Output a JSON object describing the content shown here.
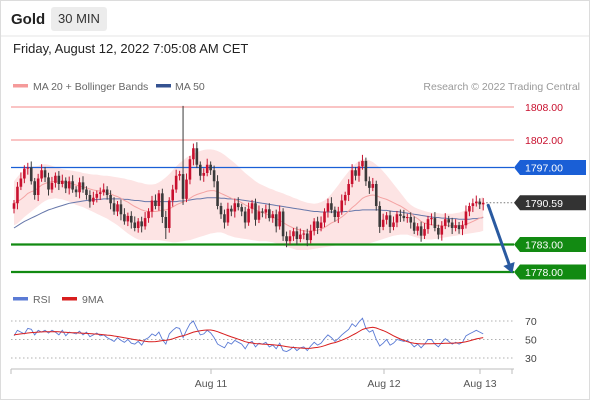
{
  "header": {
    "symbol": "Gold",
    "timeframe": "30 MIN",
    "datetime": "Friday, August 12, 2022 7:05:08 AM CET"
  },
  "legend": {
    "ma20_bb": "MA 20 + Bollinger Bands",
    "ma50": "MA 50",
    "rsi": "RSI",
    "rsi_ma": "9MA"
  },
  "credit": "Research © 2022 Trading Central",
  "colors": {
    "bull_candle": "#c8102e",
    "bear_candle": "#3a3a3a",
    "bollinger_fill": "#fde4e4",
    "ma20": "#f4a3a3",
    "ma50": "#6677aa",
    "resistance": "#f6a0a0",
    "pivot": "#1a5fd6",
    "support": "#128a12",
    "current_price": "#333333",
    "arrow": "#2a5aa0",
    "rsi_line": "#5b7bd5",
    "rsi_ma_line": "#d81e1e"
  },
  "chart_data": [
    {
      "type": "candlestick",
      "ylim": [
        1773,
        1810
      ],
      "x_ticks": [
        "Aug 11",
        "Aug 12",
        "Aug 13"
      ],
      "levels": [
        {
          "kind": "resistance",
          "value": 1808.0,
          "label": "1808.00"
        },
        {
          "kind": "resistance",
          "value": 1802.0,
          "label": "1802.00"
        },
        {
          "kind": "pivot",
          "value": 1797.0,
          "label": "1797.00"
        },
        {
          "kind": "current",
          "value": 1790.59,
          "label": "1790.59"
        },
        {
          "kind": "support",
          "value": 1783.0,
          "label": "1783.00"
        },
        {
          "kind": "support",
          "value": 1778.0,
          "label": "1778.00"
        }
      ],
      "forecast_arrow": {
        "from": 1790.5,
        "to": 1778.0
      },
      "close": [
        1790.5,
        1793.5,
        1795.0,
        1796.8,
        1797.0,
        1794.5,
        1792.0,
        1795.0,
        1796.5,
        1795.2,
        1793.0,
        1794.2,
        1795.5,
        1794.0,
        1794.6,
        1793.2,
        1794.5,
        1793.0,
        1792.5,
        1794.3,
        1793.0,
        1792.0,
        1790.8,
        1791.5,
        1792.2,
        1792.5,
        1793.0,
        1792.0,
        1790.5,
        1789.0,
        1790.3,
        1788.5,
        1787.2,
        1788.2,
        1787.0,
        1786.0,
        1787.2,
        1786.3,
        1787.8,
        1789.0,
        1791.0,
        1790.0,
        1792.3,
        1788.0,
        1786.0,
        1791.0,
        1793.0,
        1795.5,
        1795.8,
        1791.3,
        1794.8,
        1798.5,
        1800.5,
        1797.5,
        1795.5,
        1796.0,
        1797.5,
        1796.5,
        1794.5,
        1790.0,
        1788.5,
        1787.0,
        1789.5,
        1789.0,
        1790.5,
        1789.8,
        1789.0,
        1787.0,
        1789.5,
        1790.5,
        1787.5,
        1789.0,
        1788.8,
        1789.4,
        1787.8,
        1788.5,
        1786.3,
        1789.0,
        1784.5,
        1783.6,
        1784.5,
        1785.4,
        1784.0,
        1784.8,
        1785.0,
        1783.8,
        1785.5,
        1787.2,
        1786.0,
        1787.0,
        1789.0,
        1790.5,
        1789.3,
        1788.0,
        1789.0,
        1791.0,
        1792.0,
        1794.0,
        1796.5,
        1795.5,
        1797.2,
        1798.2,
        1794.5,
        1793.3,
        1794.0,
        1790.0,
        1786.2,
        1787.5,
        1788.3,
        1786.2,
        1787.0,
        1788.5,
        1788.2,
        1787.8,
        1788.0,
        1787.0,
        1785.5,
        1786.3,
        1784.6,
        1785.8,
        1787.6,
        1787.8,
        1786.0,
        1784.8,
        1786.4,
        1787.6,
        1787.0,
        1786.0,
        1786.5,
        1785.8,
        1786.5,
        1789.0,
        1790.0,
        1790.5,
        1790.8,
        1790.3,
        1790.59
      ],
      "ma20": [
        1790.5,
        1790.8,
        1791.2,
        1791.7,
        1792.3,
        1792.6,
        1792.8,
        1793.3,
        1793.8,
        1794.1,
        1794.3,
        1794.4,
        1794.5,
        1794.5,
        1794.4,
        1794.3,
        1794.2,
        1794.0,
        1793.8,
        1793.6,
        1793.5,
        1793.3,
        1793.1,
        1792.9,
        1792.8,
        1792.7,
        1792.6,
        1792.4,
        1792.2,
        1791.9,
        1791.7,
        1791.4,
        1791.0,
        1790.7,
        1790.3,
        1789.9,
        1789.6,
        1789.3,
        1789.1,
        1789.0,
        1789.0,
        1789.0,
        1789.1,
        1789.2,
        1789.3,
        1789.5,
        1789.8,
        1790.2,
        1790.5,
        1790.7,
        1791.0,
        1791.4,
        1791.8,
        1792.1,
        1792.3,
        1792.5,
        1792.7,
        1792.8,
        1792.8,
        1792.6,
        1792.3,
        1792.0,
        1791.7,
        1791.4,
        1791.2,
        1790.9,
        1790.6,
        1790.2,
        1789.9,
        1789.6,
        1789.3,
        1789.0,
        1788.8,
        1788.6,
        1788.3,
        1788.0,
        1787.7,
        1787.4,
        1787.0,
        1786.6,
        1786.3,
        1786.0,
        1785.8,
        1785.6,
        1785.5,
        1785.4,
        1785.4,
        1785.5,
        1785.6,
        1785.8,
        1786.1,
        1786.5,
        1786.9,
        1787.2,
        1787.6,
        1788.0,
        1788.5,
        1789.1,
        1789.7,
        1790.2,
        1790.8,
        1791.4,
        1791.7,
        1791.9,
        1792.0,
        1791.9,
        1791.6,
        1791.4,
        1791.2,
        1790.9,
        1790.6,
        1790.3,
        1790.0,
        1789.6,
        1789.2,
        1788.7,
        1788.1,
        1787.7,
        1787.2,
        1786.9,
        1786.7,
        1786.6,
        1786.5,
        1786.4,
        1786.4,
        1786.4,
        1786.4,
        1786.4,
        1786.4,
        1786.4,
        1786.5,
        1786.7,
        1786.9,
        1787.2,
        1787.5,
        1787.8,
        1788.0
      ],
      "ma50": [
        1786.0,
        1786.4,
        1786.8,
        1787.2,
        1787.5,
        1787.8,
        1788.1,
        1788.4,
        1788.7,
        1789.0,
        1789.3,
        1789.5,
        1789.7,
        1789.9,
        1790.1,
        1790.3,
        1790.5,
        1790.6,
        1790.7,
        1790.8,
        1790.9,
        1791.0,
        1791.1,
        1791.1,
        1791.2,
        1791.2,
        1791.3,
        1791.3,
        1791.3,
        1791.3,
        1791.3,
        1791.3,
        1791.2,
        1791.2,
        1791.1,
        1791.0,
        1791.0,
        1790.9,
        1790.8,
        1790.8,
        1790.8,
        1790.8,
        1790.8,
        1790.8,
        1790.8,
        1790.8,
        1790.8,
        1790.8,
        1790.9,
        1790.9,
        1791.0,
        1791.1,
        1791.2,
        1791.3,
        1791.3,
        1791.4,
        1791.5,
        1791.5,
        1791.5,
        1791.5,
        1791.4,
        1791.4,
        1791.3,
        1791.3,
        1791.2,
        1791.2,
        1791.1,
        1791.0,
        1790.9,
        1790.8,
        1790.7,
        1790.6,
        1790.5,
        1790.4,
        1790.3,
        1790.2,
        1790.1,
        1790.0,
        1789.9,
        1789.8,
        1789.7,
        1789.6,
        1789.5,
        1789.4,
        1789.3,
        1789.2,
        1789.1,
        1789.0,
        1789.0,
        1788.9,
        1788.9,
        1788.9,
        1788.9,
        1788.9,
        1788.9,
        1788.9,
        1789.0,
        1789.0,
        1789.1,
        1789.2,
        1789.2,
        1789.3,
        1789.3,
        1789.3,
        1789.3,
        1789.3,
        1789.3,
        1789.2,
        1789.2,
        1789.1,
        1789.0,
        1789.0,
        1788.9,
        1788.8,
        1788.7,
        1788.6,
        1788.5,
        1788.4,
        1788.3,
        1788.2,
        1788.1,
        1788.0,
        1787.9,
        1787.9,
        1787.8,
        1787.8,
        1787.7,
        1787.7,
        1787.7,
        1787.6,
        1787.6,
        1787.6,
        1787.6,
        1787.7,
        1787.7,
        1787.8,
        1787.9
      ],
      "bb_upper": [
        1794.5,
        1795.3,
        1796.0,
        1796.5,
        1797.0,
        1797.2,
        1797.2,
        1797.3,
        1797.5,
        1797.6,
        1797.5,
        1797.3,
        1797.1,
        1796.9,
        1796.7,
        1796.6,
        1796.5,
        1796.4,
        1796.3,
        1796.2,
        1796.0,
        1795.9,
        1795.8,
        1795.7,
        1795.7,
        1795.6,
        1795.5,
        1795.5,
        1795.4,
        1795.3,
        1795.2,
        1795.1,
        1795.0,
        1794.8,
        1794.7,
        1794.5,
        1794.3,
        1794.2,
        1794.0,
        1793.9,
        1793.9,
        1794.0,
        1794.3,
        1794.7,
        1795.2,
        1795.8,
        1796.5,
        1797.2,
        1797.8,
        1798.3,
        1798.8,
        1799.2,
        1799.5,
        1799.8,
        1800.0,
        1800.2,
        1800.3,
        1800.3,
        1800.2,
        1800.0,
        1799.7,
        1799.3,
        1798.8,
        1798.3,
        1797.8,
        1797.2,
        1796.6,
        1796.0,
        1795.5,
        1795.0,
        1794.5,
        1794.1,
        1793.8,
        1793.5,
        1793.2,
        1793.0,
        1792.7,
        1792.5,
        1792.3,
        1792.0,
        1791.8,
        1791.5,
        1791.3,
        1791.0,
        1790.8,
        1790.6,
        1790.5,
        1790.4,
        1790.5,
        1790.7,
        1791.0,
        1791.5,
        1792.2,
        1793.0,
        1793.8,
        1794.7,
        1795.5,
        1796.3,
        1797.1,
        1797.7,
        1798.2,
        1798.5,
        1798.5,
        1798.3,
        1798.0,
        1797.5,
        1797.0,
        1796.3,
        1795.6,
        1794.8,
        1794.0,
        1793.2,
        1792.4,
        1791.6,
        1790.8,
        1790.2,
        1789.8,
        1789.5,
        1789.3,
        1789.1,
        1788.9,
        1788.8,
        1788.7,
        1788.7,
        1788.6,
        1788.6,
        1788.6,
        1788.6,
        1788.7,
        1788.8,
        1789.0,
        1789.3,
        1789.7,
        1790.2,
        1790.8,
        1791.3,
        1791.7
      ],
      "bb_lower": [
        1786.5,
        1786.8,
        1787.4,
        1788.0,
        1788.5,
        1789.0,
        1789.5,
        1790.0,
        1790.5,
        1790.9,
        1791.2,
        1791.3,
        1791.4,
        1791.3,
        1791.2,
        1791.0,
        1790.8,
        1790.5,
        1790.2,
        1790.0,
        1789.8,
        1789.5,
        1789.2,
        1788.9,
        1788.6,
        1788.3,
        1788.0,
        1787.7,
        1787.3,
        1786.9,
        1786.5,
        1786.0,
        1785.5,
        1785.0,
        1784.6,
        1784.2,
        1783.9,
        1783.8,
        1783.8,
        1783.8,
        1783.8,
        1783.8,
        1783.8,
        1783.7,
        1783.6,
        1783.5,
        1783.4,
        1783.4,
        1783.5,
        1783.6,
        1783.7,
        1783.8,
        1784.0,
        1784.2,
        1784.4,
        1784.6,
        1784.8,
        1785.0,
        1785.1,
        1785.2,
        1785.2,
        1785.0,
        1784.7,
        1784.5,
        1784.3,
        1784.2,
        1784.1,
        1784.0,
        1783.9,
        1783.8,
        1783.7,
        1783.6,
        1783.6,
        1783.6,
        1783.5,
        1783.4,
        1783.2,
        1783.0,
        1782.8,
        1782.6,
        1782.4,
        1782.2,
        1782.0,
        1782.0,
        1782.0,
        1782.0,
        1782.1,
        1782.2,
        1782.3,
        1782.4,
        1782.5,
        1782.6,
        1782.7,
        1782.8,
        1782.9,
        1783.0,
        1783.0,
        1783.0,
        1783.0,
        1783.0,
        1783.0,
        1783.0,
        1783.1,
        1783.2,
        1783.4,
        1783.6,
        1783.8,
        1784.0,
        1784.2,
        1784.4,
        1784.6,
        1784.7,
        1784.8,
        1784.8,
        1784.8,
        1784.6,
        1784.4,
        1784.2,
        1784.0,
        1783.9,
        1783.9,
        1783.9,
        1784.0,
        1784.1,
        1784.2,
        1784.3,
        1784.4,
        1784.5,
        1784.6,
        1784.7,
        1784.8,
        1784.9,
        1785.0,
        1785.1,
        1785.2,
        1785.3,
        1785.5
      ]
    },
    {
      "type": "line",
      "series_names": [
        "RSI",
        "9MA"
      ],
      "y_ticks": [
        70,
        50,
        30
      ],
      "ylim": [
        25,
        78
      ],
      "rsi": [
        54,
        60,
        58,
        56,
        62,
        61,
        55,
        60,
        58,
        60,
        57,
        60,
        58,
        55,
        60,
        54,
        58,
        57,
        56,
        59,
        55,
        58,
        53,
        55,
        57,
        54,
        55,
        52,
        50,
        48,
        52,
        49,
        47,
        50,
        46,
        45,
        48,
        44,
        50,
        52,
        56,
        54,
        58,
        50,
        45,
        56,
        60,
        63,
        62,
        52,
        60,
        67,
        70,
        62,
        55,
        56,
        60,
        57,
        52,
        45,
        43,
        41,
        47,
        45,
        49,
        47,
        45,
        40,
        46,
        48,
        42,
        46,
        45,
        47,
        42,
        44,
        40,
        46,
        38,
        37,
        39,
        42,
        38,
        41,
        42,
        38,
        43,
        47,
        44,
        46,
        51,
        55,
        52,
        48,
        51,
        55,
        58,
        61,
        67,
        64,
        69,
        73,
        62,
        58,
        60,
        50,
        43,
        46,
        50,
        44,
        46,
        50,
        49,
        48,
        49,
        46,
        42,
        45,
        41,
        45,
        50,
        50,
        45,
        42,
        47,
        51,
        48,
        45,
        47,
        45,
        47,
        54,
        56,
        58,
        60,
        58,
        56
      ],
      "ma9": [
        55,
        55.5,
        56,
        56.5,
        57,
        57.5,
        57.7,
        58,
        58.2,
        58.3,
        58.3,
        58.4,
        58.5,
        58.3,
        58.0,
        57.8,
        57.5,
        57.4,
        57.2,
        57.0,
        56.8,
        56.6,
        56.4,
        56.1,
        55.8,
        55.5,
        55.2,
        54.8,
        54.4,
        53.8,
        53.2,
        52.6,
        51.8,
        51.2,
        50.5,
        49.9,
        49.3,
        48.6,
        48.1,
        47.6,
        47.5,
        47.7,
        48.3,
        48.8,
        49.2,
        49.8,
        50.8,
        52.0,
        53.2,
        54.0,
        55.2,
        56.6,
        58.0,
        58.8,
        59.5,
        60.0,
        60.3,
        60.3,
        59.6,
        58.4,
        57.0,
        55.6,
        54.2,
        52.8,
        51.6,
        50.3,
        49.0,
        47.6,
        46.8,
        46.2,
        45.6,
        45.3,
        45.0,
        44.8,
        44.6,
        44.4,
        44.0,
        43.5,
        43.0,
        42.3,
        41.8,
        41.4,
        41.0,
        40.8,
        40.6,
        40.4,
        40.6,
        41.0,
        41.5,
        42.2,
        43.3,
        44.6,
        45.8,
        46.6,
        47.8,
        49.2,
        50.8,
        52.5,
        54.5,
        56.5,
        58.6,
        60.8,
        62.0,
        62.6,
        63.2,
        62.4,
        61.0,
        59.6,
        58.0,
        56.0,
        54.0,
        52.2,
        50.5,
        49.0,
        47.6,
        46.7,
        46.0,
        45.6,
        45.2,
        45.2,
        45.4,
        45.5,
        45.6,
        45.6,
        45.7,
        45.9,
        46.0,
        46.1,
        46.2,
        46.4,
        46.9,
        47.6,
        48.5,
        49.6,
        50.6,
        51.3,
        52.0
      ]
    }
  ]
}
